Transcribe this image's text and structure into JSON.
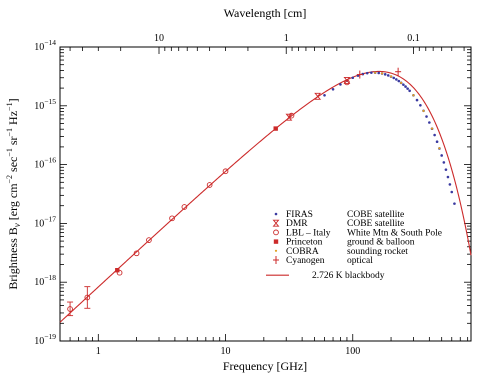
{
  "chart_data": {
    "type": "scatter",
    "title": "",
    "xlabel": "Frequency [GHz]",
    "ylabel_main": "Brightness B",
    "ylabel_sub": "ν",
    "ylabel_units": "[erg cm",
    "ylabel_units_parts": [
      {
        "t": " [erg cm",
        "sup": false
      },
      {
        "t": "−2",
        "sup": true
      },
      {
        "t": " sec",
        "sup": false
      },
      {
        "t": "−1",
        "sup": true
      },
      {
        "t": " sr",
        "sup": false
      },
      {
        "t": "−1",
        "sup": true
      },
      {
        "t": " Hz",
        "sup": false
      },
      {
        "t": "−1",
        "sup": true
      },
      {
        "t": "]",
        "sup": false
      }
    ],
    "x2label": "Wavelength [cm]",
    "xscale": "log",
    "yscale": "log",
    "xlim": [
      0.5,
      850
    ],
    "ylim": [
      1e-19,
      1e-14
    ],
    "x_ticks": [
      {
        "value": 1,
        "label": "1"
      },
      {
        "value": 10,
        "label": "10"
      },
      {
        "value": 100,
        "label": "100"
      }
    ],
    "y_ticks": [
      {
        "value": 1e-19,
        "base": "10",
        "exp": "−19"
      },
      {
        "value": 1e-18,
        "base": "10",
        "exp": "−18"
      },
      {
        "value": 1e-17,
        "base": "10",
        "exp": "−17"
      },
      {
        "value": 1e-16,
        "base": "10",
        "exp": "−16"
      },
      {
        "value": 1e-15,
        "base": "10",
        "exp": "−15"
      },
      {
        "value": 1e-14,
        "base": "10",
        "exp": "−14"
      }
    ],
    "top_ticks": [
      {
        "value": 10,
        "label": "10"
      },
      {
        "value": 1,
        "label": "1"
      },
      {
        "value": 0.1,
        "label": "0.1"
      }
    ],
    "legend_position": "lower-right",
    "series": [
      {
        "name": "FIRAS",
        "detail": "COBE satellite",
        "marker": "dot",
        "color": "#3a3aa0",
        "x": [
          60,
          70,
          80,
          90,
          100,
          110,
          120,
          130,
          140,
          150,
          160,
          170,
          180,
          190,
          200,
          210,
          220,
          230,
          240,
          250,
          260,
          270,
          280,
          300,
          320,
          340,
          360,
          380,
          400,
          420,
          440,
          460,
          480,
          500,
          520,
          540,
          560,
          580,
          600,
          630
        ],
        "y": [
          1.51e-15,
          1.91e-15,
          2.31e-15,
          2.68e-15,
          3e-15,
          3.26e-15,
          3.46e-15,
          3.59e-15,
          3.66e-15,
          3.66e-15,
          3.62e-15,
          3.54e-15,
          3.43e-15,
          3.29e-15,
          3.14e-15,
          2.98e-15,
          2.81e-15,
          2.64e-15,
          2.46e-15,
          2.29e-15,
          2.12e-15,
          1.96e-15,
          1.8e-15,
          1.51e-15,
          1.25e-15,
          1.02e-15,
          8.23e-16,
          6.57e-16,
          5.2e-16,
          4.08e-16,
          3.18e-16,
          2.45e-16,
          1.88e-16,
          1.43e-16,
          1.09e-16,
          8.2e-17,
          6.15e-17,
          4.6e-17,
          3.42e-17,
          2.17e-17
        ]
      },
      {
        "name": "DMR",
        "detail": "COBE satellite",
        "marker": "hourglass",
        "color": "#cc2a2a",
        "x": [
          31.5,
          53,
          90
        ],
        "y": [
          6.4e-16,
          1.45e-15,
          2.7e-15
        ]
      },
      {
        "name": "LBL – Italy",
        "detail": "White Mtn & South Pole",
        "marker": "circle",
        "color": "#cc2a2a",
        "x": [
          0.6,
          0.82,
          1.47,
          2.0,
          2.5,
          3.8,
          4.75,
          7.5,
          10,
          33,
          90
        ],
        "y": [
          3.5e-19,
          5.5e-19,
          1.45e-18,
          3.1e-18,
          5.2e-18,
          1.22e-17,
          1.9e-17,
          4.5e-17,
          7.7e-17,
          6.8e-16,
          2.5e-15
        ]
      },
      {
        "name": "Princeton",
        "detail": "ground & balloon",
        "marker": "square",
        "color": "#cc2a2a",
        "x": [
          1.41,
          24.8
        ],
        "y": [
          1.6e-18,
          4.1e-16
        ]
      },
      {
        "name": "COBRA",
        "detail": "sounding rocket",
        "marker": "small-dot",
        "color": "#e0a020",
        "x": [
          150,
          170,
          200,
          240,
          300,
          360,
          420,
          480
        ],
        "y": [
          3.66e-15,
          3.55e-15,
          3.15e-15,
          2.46e-15,
          1.51e-15,
          8.2e-16,
          4.1e-16,
          1.9e-16
        ]
      },
      {
        "name": "Cyanogen",
        "detail": "optical",
        "marker": "plus",
        "color": "#cc2a2a",
        "x": [
          113.6,
          227.3
        ],
        "y": [
          3.4e-15,
          3.8e-15
        ]
      }
    ],
    "error_bars": [
      {
        "x": 0.6,
        "low": 2.7e-19,
        "high": 4.6e-19
      },
      {
        "x": 0.82,
        "low": 3.6e-19,
        "high": 8.4e-19
      }
    ],
    "model": {
      "name": "2.726 K blackbody",
      "T_K": 2.726,
      "color": "#cc2a2a"
    }
  }
}
